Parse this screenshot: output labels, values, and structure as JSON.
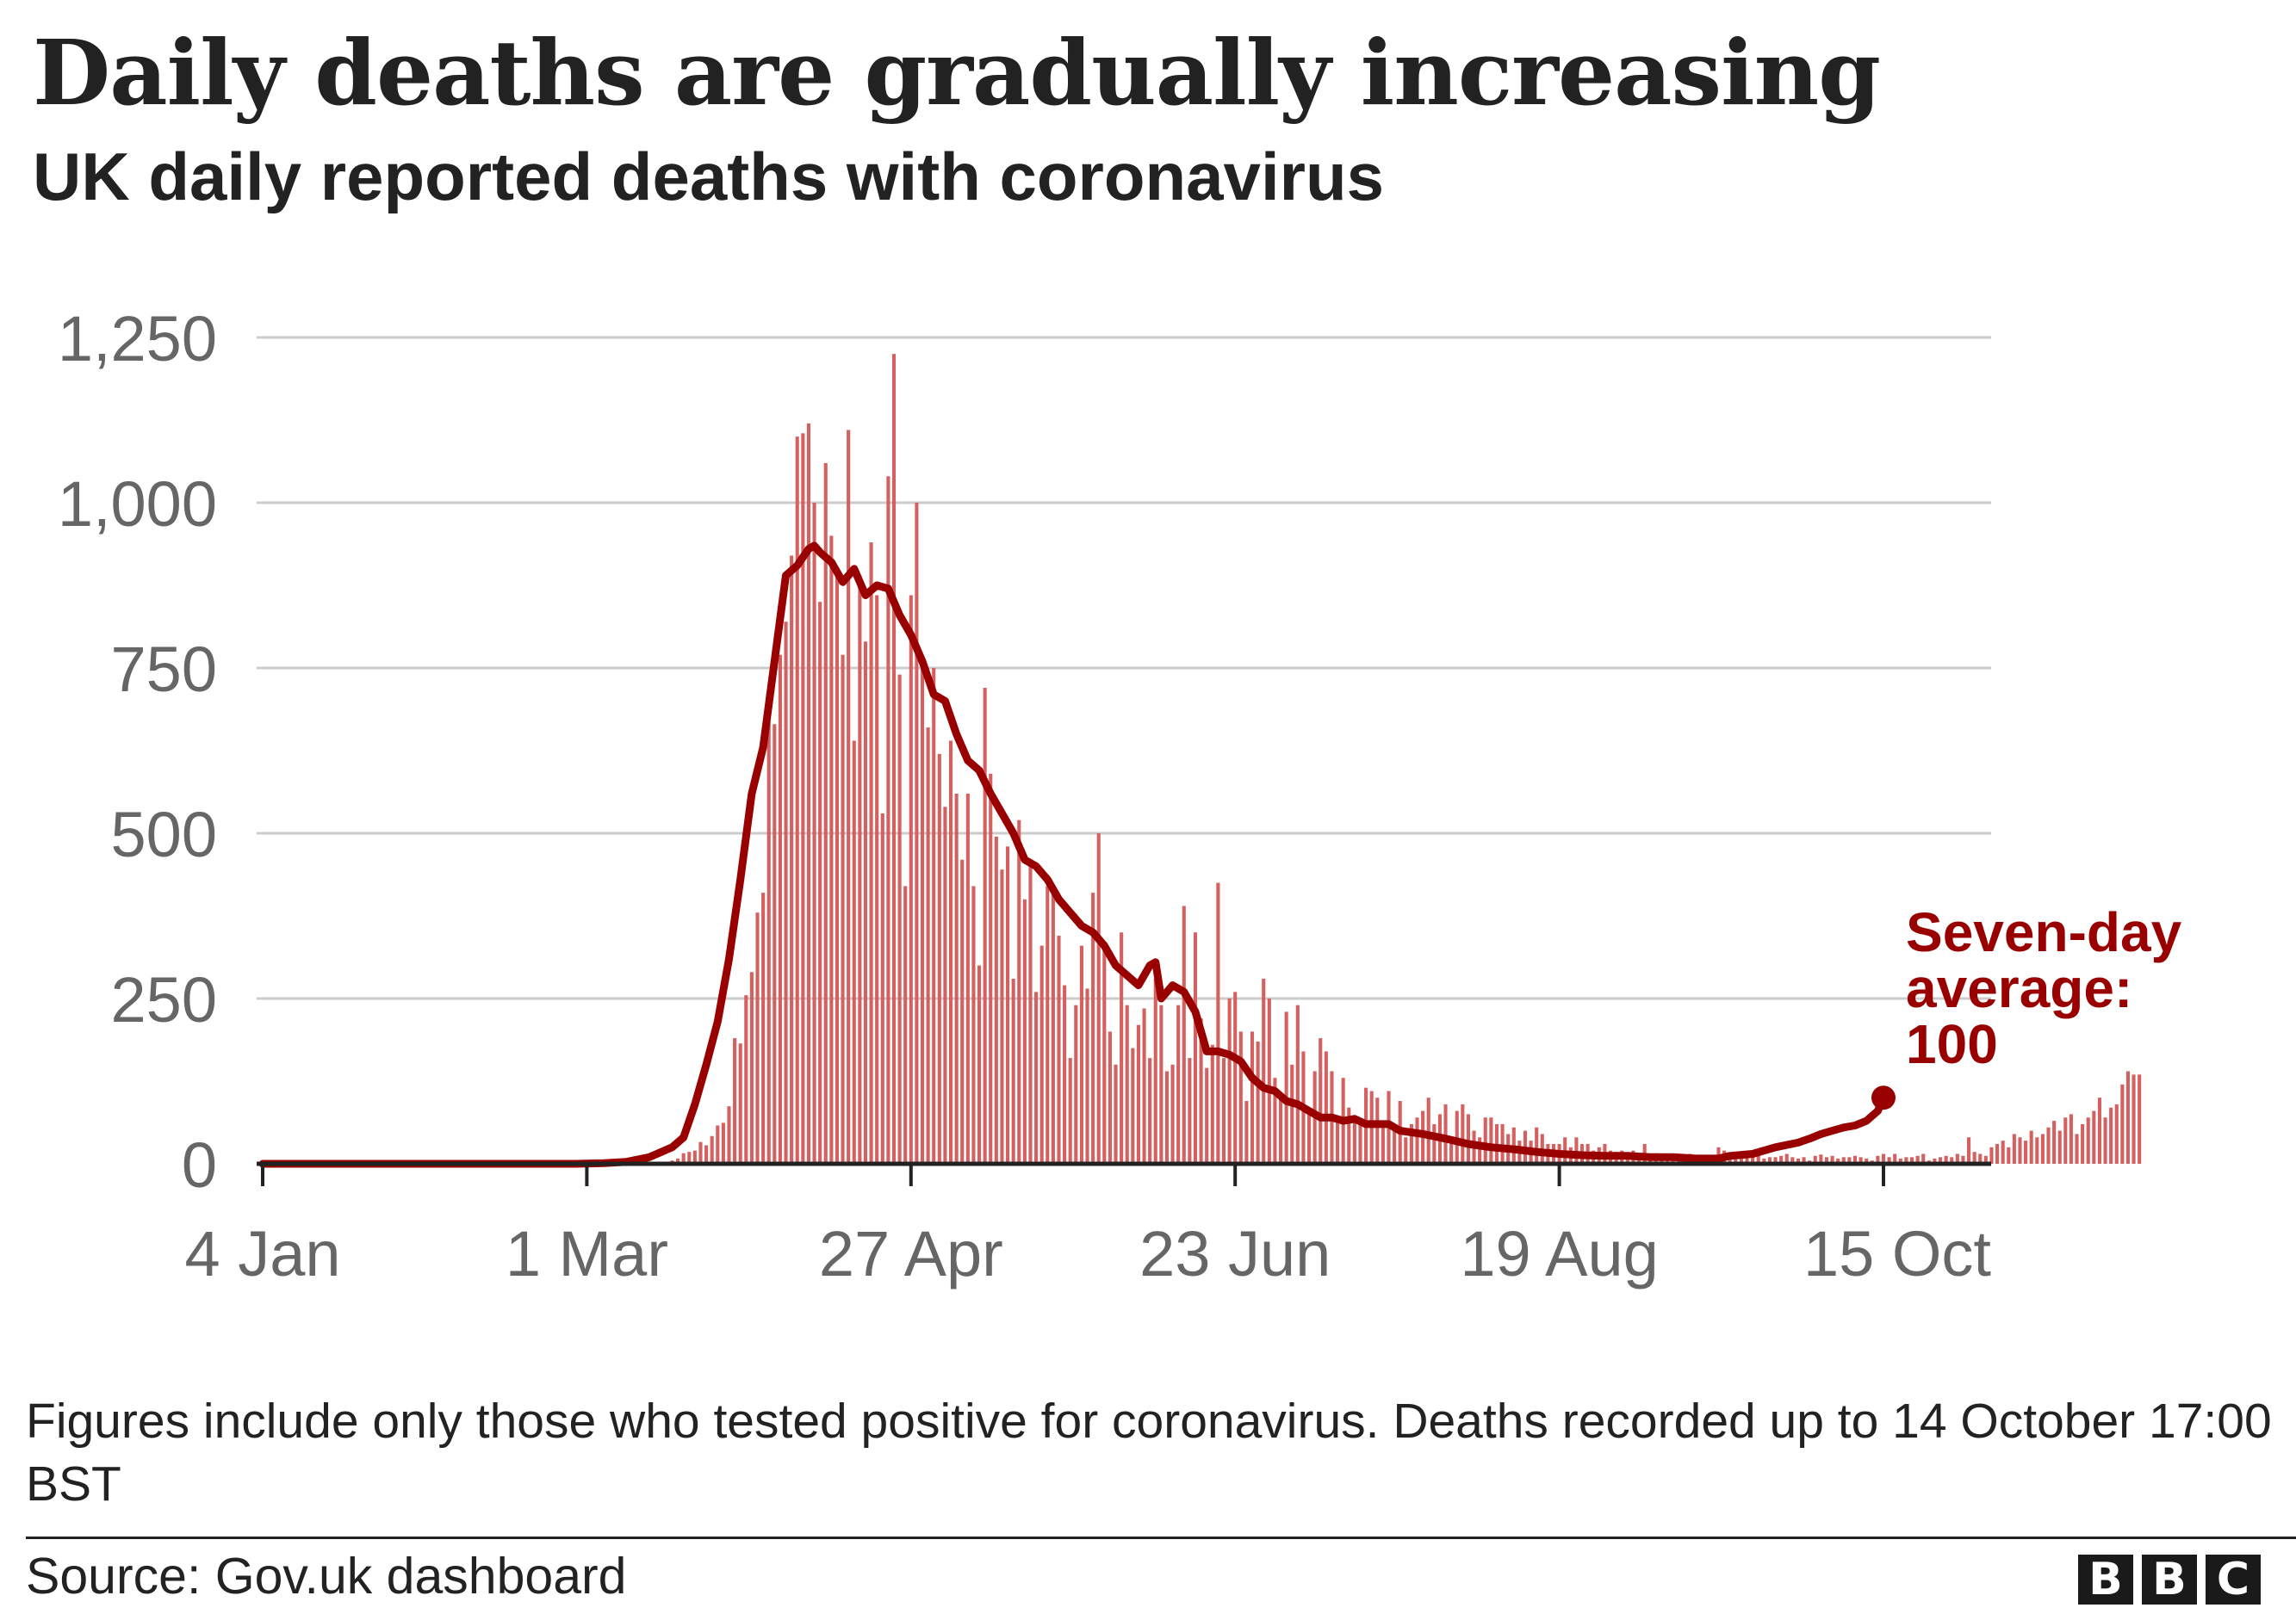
{
  "chart_data": {
    "type": "bar+line",
    "title": "Daily deaths are gradually increasing",
    "subtitle": "UK daily reported deaths with coronavirus",
    "ylim": [
      0,
      1250
    ],
    "yticks": [
      0,
      250,
      500,
      750,
      1000,
      1250
    ],
    "ytick_labels": [
      "0",
      "250",
      "500",
      "750",
      "1,000",
      "1,250"
    ],
    "x_start_label": "4 Jan",
    "x_end_day": 285,
    "xticks": [
      {
        "day": 0,
        "label": "4 Jan"
      },
      {
        "day": 57,
        "label": "1 Mar"
      },
      {
        "day": 114,
        "label": "27 Apr"
      },
      {
        "day": 171,
        "label": "23 Jun"
      },
      {
        "day": 228,
        "label": "19 Aug"
      },
      {
        "day": 285,
        "label": "15 Oct"
      }
    ],
    "series": [
      {
        "name": "Daily reported deaths",
        "kind": "bar",
        "color": "#d56060",
        "start_day": 64,
        "values": [
          1,
          2,
          1,
          2,
          1,
          1,
          3,
          2,
          5,
          8,
          16,
          18,
          20,
          33,
          28,
          42,
          58,
          62,
          87,
          190,
          182,
          255,
          290,
          380,
          410,
          670,
          665,
          770,
          820,
          920,
          1100,
          1105,
          1120,
          1000,
          850,
          1060,
          950,
          900,
          770,
          1110,
          640,
          890,
          790,
          940,
          860,
          530,
          1040,
          1225,
          740,
          420,
          860,
          1000,
          760,
          660,
          750,
          620,
          540,
          640,
          560,
          460,
          560,
          420,
          300,
          720,
          590,
          495,
          445,
          480,
          280,
          520,
          400,
          460,
          260,
          330,
          420,
          410,
          345,
          270,
          160,
          240,
          330,
          265,
          410,
          500,
          330,
          200,
          150,
          350,
          240,
          175,
          210,
          235,
          160,
          280,
          240,
          140,
          150,
          240,
          390,
          160,
          350,
          220,
          145,
          180,
          425,
          160,
          250,
          260,
          200,
          95,
          200,
          185,
          280,
          250,
          130,
          100,
          230,
          150,
          240,
          170,
          80,
          140,
          190,
          170,
          140,
          70,
          130,
          85,
          70,
          60,
          115,
          110,
          100,
          65,
          110,
          55,
          95,
          40,
          60,
          70,
          80,
          100,
          60,
          75,
          90,
          40,
          80,
          90,
          75,
          50,
          40,
          70,
          70,
          60,
          60,
          45,
          55,
          35,
          50,
          35,
          55,
          45,
          30,
          30,
          30,
          40,
          25,
          40,
          30,
          30,
          20,
          25,
          30,
          20,
          18,
          20,
          15,
          20,
          15,
          30,
          15,
          16,
          12,
          15,
          12,
          10,
          12,
          15,
          10,
          8,
          10,
          12,
          25,
          20,
          8,
          15,
          10,
          15,
          12,
          15,
          8,
          10,
          10,
          12,
          15,
          10,
          8,
          10,
          5,
          12,
          14,
          10,
          12,
          8,
          10,
          10,
          12,
          10,
          8,
          5,
          12,
          15,
          10,
          15,
          8,
          10,
          10,
          12,
          15,
          5,
          8,
          10,
          12,
          10,
          15,
          12,
          40,
          18,
          15,
          12,
          25,
          30,
          35,
          25,
          45,
          40,
          35,
          50,
          40,
          45,
          55,
          65,
          50,
          70,
          75,
          45,
          60,
          70,
          80,
          100,
          70,
          85,
          90,
          120,
          140,
          135,
          135
        ]
      },
      {
        "name": "Seven-day average",
        "kind": "line",
        "color": "#990000",
        "points": [
          [
            0,
            0
          ],
          [
            55,
            0
          ],
          [
            60,
            1
          ],
          [
            64,
            3
          ],
          [
            68,
            10
          ],
          [
            72,
            25
          ],
          [
            74,
            40
          ],
          [
            76,
            90
          ],
          [
            78,
            150
          ],
          [
            80,
            215
          ],
          [
            82,
            310
          ],
          [
            84,
            430
          ],
          [
            86,
            560
          ],
          [
            88,
            630
          ],
          [
            90,
            760
          ],
          [
            92,
            890
          ],
          [
            94,
            905
          ],
          [
            96,
            930
          ],
          [
            97,
            935
          ],
          [
            98,
            925
          ],
          [
            100,
            910
          ],
          [
            102,
            880
          ],
          [
            104,
            900
          ],
          [
            106,
            860
          ],
          [
            108,
            875
          ],
          [
            110,
            870
          ],
          [
            112,
            830
          ],
          [
            114,
            800
          ],
          [
            116,
            760
          ],
          [
            118,
            710
          ],
          [
            120,
            700
          ],
          [
            122,
            650
          ],
          [
            124,
            610
          ],
          [
            126,
            595
          ],
          [
            128,
            560
          ],
          [
            130,
            530
          ],
          [
            132,
            500
          ],
          [
            134,
            460
          ],
          [
            136,
            450
          ],
          [
            138,
            430
          ],
          [
            140,
            400
          ],
          [
            142,
            380
          ],
          [
            144,
            360
          ],
          [
            146,
            350
          ],
          [
            148,
            330
          ],
          [
            150,
            300
          ],
          [
            152,
            285
          ],
          [
            154,
            270
          ],
          [
            156,
            300
          ],
          [
            157,
            305
          ],
          [
            158,
            250
          ],
          [
            160,
            270
          ],
          [
            162,
            260
          ],
          [
            164,
            230
          ],
          [
            166,
            170
          ],
          [
            168,
            170
          ],
          [
            170,
            165
          ],
          [
            172,
            155
          ],
          [
            174,
            130
          ],
          [
            176,
            115
          ],
          [
            178,
            110
          ],
          [
            180,
            95
          ],
          [
            182,
            90
          ],
          [
            184,
            80
          ],
          [
            186,
            70
          ],
          [
            188,
            70
          ],
          [
            190,
            65
          ],
          [
            192,
            68
          ],
          [
            194,
            60
          ],
          [
            196,
            60
          ],
          [
            198,
            60
          ],
          [
            200,
            50
          ],
          [
            204,
            45
          ],
          [
            208,
            38
          ],
          [
            212,
            30
          ],
          [
            216,
            25
          ],
          [
            220,
            22
          ],
          [
            224,
            18
          ],
          [
            228,
            15
          ],
          [
            232,
            13
          ],
          [
            236,
            12
          ],
          [
            240,
            12
          ],
          [
            244,
            10
          ],
          [
            248,
            10
          ],
          [
            252,
            8
          ],
          [
            256,
            8
          ],
          [
            258,
            12
          ],
          [
            262,
            15
          ],
          [
            266,
            25
          ],
          [
            270,
            32
          ],
          [
            272,
            38
          ],
          [
            274,
            45
          ],
          [
            276,
            50
          ],
          [
            278,
            55
          ],
          [
            280,
            58
          ],
          [
            282,
            65
          ],
          [
            284,
            80
          ],
          [
            285,
            100
          ]
        ]
      }
    ],
    "annotation": {
      "lines": [
        "Seven-day",
        "average:",
        "100"
      ],
      "value": 100,
      "color": "#990000"
    }
  },
  "note_text": "Figures include only those who tested positive for coronavirus. Deaths recorded up to 14 October 17:00 BST",
  "source_text": "Source: Gov.uk dashboard",
  "logo_letters": [
    "B",
    "B",
    "C"
  ]
}
